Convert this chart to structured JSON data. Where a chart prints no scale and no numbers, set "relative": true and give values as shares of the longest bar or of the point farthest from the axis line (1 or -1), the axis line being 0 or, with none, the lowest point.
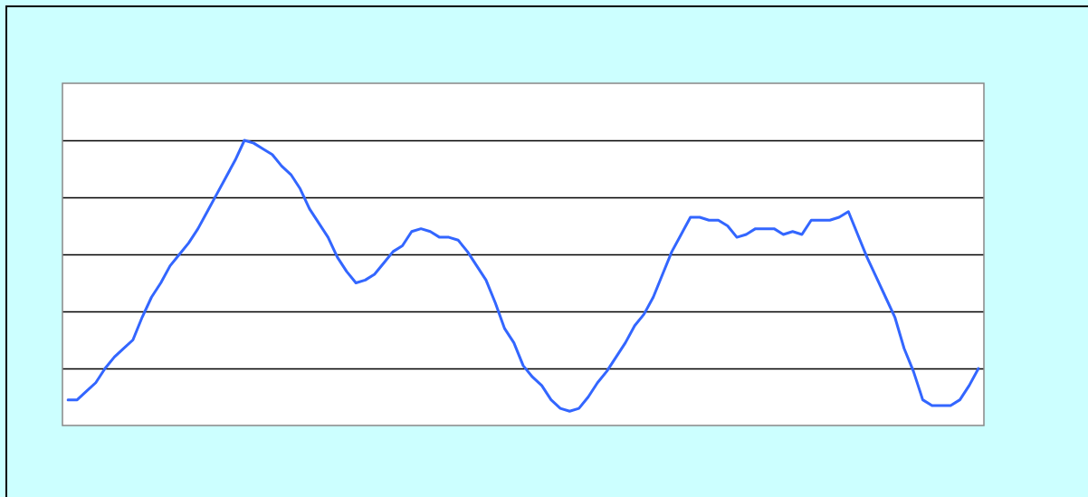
{
  "chart_data": {
    "type": "line",
    "relative": true,
    "grid": "y",
    "marker": "none",
    "line_style": "solid",
    "categories": [
      null,
      null,
      null,
      null,
      null,
      null,
      null,
      null,
      null,
      null,
      null,
      null,
      null,
      null,
      null,
      null,
      null,
      null,
      null,
      null,
      null,
      null,
      null,
      null,
      null,
      null,
      null,
      null,
      null,
      null,
      null,
      null,
      null,
      null,
      null,
      null,
      null,
      null,
      null,
      null,
      null,
      null,
      null,
      null,
      null,
      null,
      null,
      null,
      null,
      null,
      null,
      null,
      null,
      null,
      null,
      null,
      null,
      null,
      null,
      null,
      null,
      null,
      null,
      null,
      null,
      null,
      null,
      null,
      null,
      null,
      null,
      null,
      null,
      null,
      null,
      null,
      null,
      null,
      null,
      null,
      null,
      null,
      null,
      null,
      null,
      null,
      null,
      null,
      null,
      null,
      null,
      null,
      null,
      null,
      null,
      null,
      null,
      null,
      null
    ],
    "series": [
      {
        "color": "#3366ff",
        "values": [
          0.09,
          0.09,
          0.12,
          0.15,
          0.2,
          0.24,
          0.27,
          0.3,
          0.38,
          0.45,
          0.5,
          0.56,
          0.6,
          0.64,
          0.69,
          0.75,
          0.81,
          0.87,
          0.93,
          1,
          0.99,
          0.97,
          0.95,
          0.91,
          0.88,
          0.83,
          0.76,
          0.71,
          0.66,
          0.59,
          0.54,
          0.5,
          0.51,
          0.53,
          0.57,
          0.61,
          0.63,
          0.68,
          0.69,
          0.68,
          0.66,
          0.66,
          0.65,
          0.61,
          0.56,
          0.51,
          0.43,
          0.34,
          0.29,
          0.21,
          0.17,
          0.14,
          0.09,
          0.06,
          0.05,
          0.06,
          0.1,
          0.15,
          0.19,
          0.24,
          0.29,
          0.35,
          0.39,
          0.45,
          0.53,
          0.61,
          0.67,
          0.73,
          0.73,
          0.72,
          0.72,
          0.7,
          0.66,
          0.67,
          0.69,
          0.69,
          0.69,
          0.67,
          0.68,
          0.67,
          0.72,
          0.72,
          0.72,
          0.73,
          0.75,
          0.67,
          0.59,
          0.52,
          0.45,
          0.38,
          0.27,
          0.19,
          0.09,
          0.07,
          0.07,
          0.07,
          0.09,
          0.14,
          0.2
        ]
      }
    ]
  }
}
